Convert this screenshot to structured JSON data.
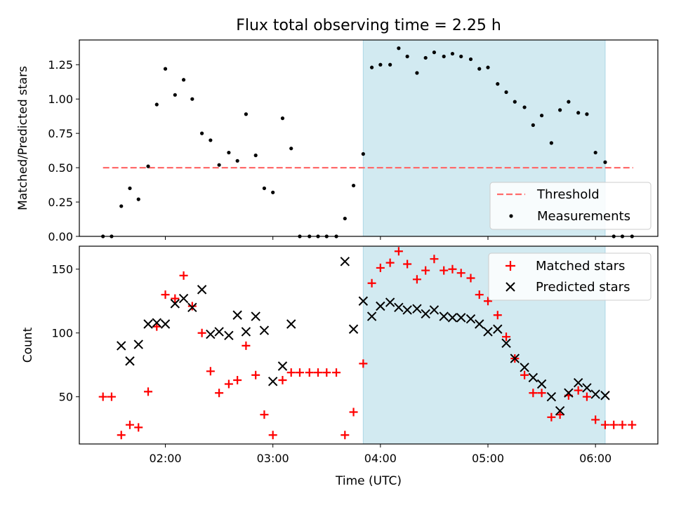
{
  "chart_data": {
    "title": "Flux total observing time = 2.25 h",
    "xlabel": "Time (UTC)",
    "x_units": "hours since 00:00 UTC",
    "xlim": [
      1.2,
      6.58
    ],
    "xticks": [
      {
        "value": 2,
        "label": "02:00"
      },
      {
        "value": 3,
        "label": "03:00"
      },
      {
        "value": 4,
        "label": "04:00"
      },
      {
        "value": 5,
        "label": "05:00"
      },
      {
        "value": 6,
        "label": "06:00"
      }
    ],
    "highlight": {
      "x_start": 3.84,
      "x_end": 6.09,
      "color": "#add8e6"
    },
    "colors": {
      "threshold": "#ff6b6b",
      "measurements": "#000000",
      "matched": "#ff0000",
      "predicted": "#000000"
    },
    "top": {
      "type": "scatter",
      "ylabel": "Matched/Predicted stars",
      "ylim": [
        0,
        1.43
      ],
      "yticks": [
        "0.00",
        "0.25",
        "0.50",
        "0.75",
        "1.00",
        "1.25"
      ],
      "threshold": {
        "name": "Threshold",
        "value": 0.5,
        "x_range": [
          1.42,
          6.35
        ]
      },
      "measurements": {
        "name": "Measurements",
        "x": [
          1.42,
          1.5,
          1.59,
          1.67,
          1.75,
          1.84,
          1.92,
          2.0,
          2.09,
          2.17,
          2.25,
          2.34,
          2.42,
          2.5,
          2.59,
          2.67,
          2.75,
          2.84,
          2.92,
          3.0,
          3.09,
          3.17,
          3.25,
          3.34,
          3.42,
          3.5,
          3.59,
          3.67,
          3.75,
          3.84,
          3.92,
          4.0,
          4.09,
          4.17,
          4.25,
          4.34,
          4.42,
          4.5,
          4.59,
          4.67,
          4.75,
          4.84,
          4.92,
          5.0,
          5.09,
          5.17,
          5.25,
          5.34,
          5.42,
          5.5,
          5.59,
          5.67,
          5.75,
          5.84,
          5.92,
          6.0,
          6.09,
          6.17,
          6.25,
          6.34
        ],
        "y": [
          0.0,
          0.0,
          0.22,
          0.35,
          0.27,
          0.51,
          0.96,
          1.22,
          1.03,
          1.14,
          1.0,
          0.75,
          0.7,
          0.52,
          0.61,
          0.55,
          0.89,
          0.59,
          0.35,
          0.32,
          0.86,
          0.64,
          0.0,
          0.0,
          0.0,
          0.0,
          0.0,
          0.13,
          0.37,
          0.6,
          1.23,
          1.25,
          1.25,
          1.37,
          1.31,
          1.19,
          1.3,
          1.34,
          1.31,
          1.33,
          1.31,
          1.29,
          1.22,
          1.23,
          1.11,
          1.05,
          0.98,
          0.94,
          0.81,
          0.88,
          0.68,
          0.92,
          0.98,
          0.9,
          0.89,
          0.61,
          0.54,
          0.0,
          0.0,
          0.0
        ]
      }
    },
    "bottom": {
      "type": "scatter",
      "ylabel": "Count",
      "ylim": [
        13,
        168
      ],
      "yticks": [
        "50",
        "100",
        "150"
      ],
      "series": [
        {
          "name": "Matched stars",
          "marker": "plus",
          "x": [
            1.42,
            1.5,
            1.59,
            1.67,
            1.75,
            1.84,
            1.92,
            2.0,
            2.09,
            2.17,
            2.25,
            2.34,
            2.42,
            2.5,
            2.59,
            2.67,
            2.75,
            2.84,
            2.92,
            3.0,
            3.09,
            3.17,
            3.25,
            3.34,
            3.42,
            3.5,
            3.59,
            3.67,
            3.75,
            3.84,
            3.92,
            4.0,
            4.09,
            4.17,
            4.25,
            4.34,
            4.42,
            4.5,
            4.59,
            4.67,
            4.75,
            4.84,
            4.92,
            5.0,
            5.09,
            5.17,
            5.25,
            5.34,
            5.42,
            5.5,
            5.59,
            5.67,
            5.75,
            5.84,
            5.92,
            6.0,
            6.09,
            6.17,
            6.25,
            6.34
          ],
          "y": [
            50,
            50,
            20,
            28,
            26,
            54,
            105,
            130,
            127,
            145,
            121,
            100,
            70,
            53,
            60,
            63,
            90,
            67,
            36,
            20,
            63,
            69,
            69,
            69,
            69,
            69,
            69,
            20,
            38,
            76,
            139,
            151,
            155,
            164,
            154,
            142,
            149,
            158,
            149,
            150,
            147,
            143,
            130,
            125,
            114,
            97,
            80,
            67,
            53,
            53,
            34,
            36,
            51,
            55,
            50,
            32,
            28,
            28,
            28,
            28
          ]
        },
        {
          "name": "Predicted stars",
          "marker": "x",
          "x": [
            1.59,
            1.67,
            1.75,
            1.84,
            1.92,
            2.0,
            2.09,
            2.17,
            2.25,
            2.34,
            2.42,
            2.5,
            2.59,
            2.67,
            2.75,
            2.84,
            2.92,
            3.0,
            3.09,
            3.17,
            3.67,
            3.75,
            3.84,
            3.92,
            4.0,
            4.09,
            4.17,
            4.25,
            4.34,
            4.42,
            4.5,
            4.59,
            4.67,
            4.75,
            4.84,
            4.92,
            5.0,
            5.09,
            5.17,
            5.25,
            5.34,
            5.42,
            5.5,
            5.59,
            5.67,
            5.75,
            5.84,
            5.92,
            6.0,
            6.09
          ],
          "y": [
            90,
            78,
            91,
            107,
            108,
            107,
            123,
            127,
            120,
            134,
            99,
            101,
            98,
            114,
            101,
            113,
            102,
            62,
            74,
            107,
            156,
            103,
            125,
            113,
            121,
            124,
            120,
            118,
            119,
            115,
            118,
            113,
            112,
            112,
            111,
            107,
            101,
            103,
            92,
            80,
            73,
            65,
            60,
            50,
            39,
            53,
            61,
            57,
            52,
            51
          ]
        }
      ]
    }
  }
}
